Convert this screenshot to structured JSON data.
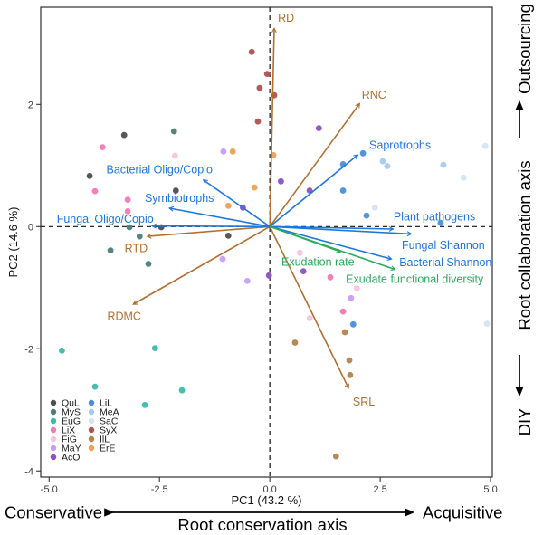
{
  "chart_data": {
    "type": "scatter",
    "subtype": "pca-biplot",
    "xlabel": "PC1 (43.2 %)",
    "ylabel": "PC2 (14.6 %)",
    "xlim": [
      -5.19,
      5.04
    ],
    "ylim": [
      -4.1,
      3.59
    ],
    "xticks": [
      -5.0,
      -2.5,
      0.0,
      2.5,
      5.0
    ],
    "xtick_labels": [
      "-5.0",
      "-2.5",
      "0.0",
      "2.5",
      "5.0"
    ],
    "yticks": [
      2,
      0,
      -2,
      -4
    ],
    "ytick_labels": [
      "2",
      "0",
      "-2",
      "-4"
    ],
    "grid": false,
    "dashed_zero_lines": true,
    "legend_position": "bottom-left-inside",
    "series": [
      {
        "name": "QuL",
        "color": "#4e4e4e",
        "points": [
          [
            -3.3,
            1.5
          ],
          [
            -4.08,
            0.83
          ],
          [
            -2.13,
            0.59
          ],
          [
            -2.46,
            -0.01
          ],
          [
            -0.94,
            -0.15
          ]
        ]
      },
      {
        "name": "MyS",
        "color": "#4e7d79",
        "points": [
          [
            -2.17,
            1.56
          ],
          [
            -3.18,
            -0.01
          ],
          [
            -2.95,
            -0.16
          ],
          [
            -3.61,
            -0.39
          ],
          [
            -2.75,
            -0.61
          ]
        ]
      },
      {
        "name": "EuG",
        "color": "#3cb9ae",
        "points": [
          [
            -4.71,
            -2.03
          ],
          [
            -2.6,
            -1.99
          ],
          [
            -3.96,
            -2.62
          ],
          [
            -1.99,
            -2.68
          ],
          [
            -2.83,
            -2.92
          ]
        ]
      },
      {
        "name": "LiX",
        "color": "#f279b5",
        "points": [
          [
            -3.79,
            1.3
          ],
          [
            -3.96,
            0.58
          ],
          [
            -3.22,
            0.44
          ],
          [
            -3.22,
            0.25
          ],
          [
            1.37,
            -0.83
          ],
          [
            1.66,
            -1.39
          ]
        ]
      },
      {
        "name": "FiG",
        "color": "#f9c3dc",
        "points": [
          [
            -2.15,
            1.16
          ],
          [
            0.68,
            -0.43
          ],
          [
            1.97,
            -1.01
          ],
          [
            0.9,
            -1.5
          ]
        ]
      },
      {
        "name": "MaY",
        "color": "#c99cf5",
        "points": [
          [
            -1.05,
            1.23
          ],
          [
            -1.07,
            -0.53
          ],
          [
            -0.51,
            -0.89
          ],
          [
            1.84,
            -1.17
          ]
        ]
      },
      {
        "name": "AcO",
        "color": "#8a50c4",
        "points": [
          [
            1.11,
            1.61
          ],
          [
            0.25,
            0.74
          ],
          [
            0.9,
            0.59
          ],
          [
            -0.61,
            0.31
          ],
          [
            0.76,
            -0.73
          ],
          [
            -0.02,
            -0.8
          ]
        ]
      },
      {
        "name": "LiL",
        "color": "#4a8fdb",
        "points": [
          [
            2.11,
            1.2
          ],
          [
            1.66,
            1.02
          ],
          [
            1.66,
            0.59
          ],
          [
            2.19,
            0.18
          ],
          [
            3.87,
            0.06
          ],
          [
            1.89,
            -1.6
          ]
        ]
      },
      {
        "name": "MeA",
        "color": "#a5caf0",
        "points": [
          [
            2.56,
            1.07
          ],
          [
            2.66,
            0.99
          ],
          [
            3.93,
            1.01
          ]
        ]
      },
      {
        "name": "SaC",
        "color": "#d5e3f7",
        "points": [
          [
            4.88,
            1.32
          ],
          [
            4.39,
            0.8
          ],
          [
            2.38,
            0.31
          ],
          [
            4.92,
            -1.59
          ]
        ]
      },
      {
        "name": "SyX",
        "color": "#b15050",
        "points": [
          [
            -0.41,
            2.86
          ],
          [
            -0.06,
            2.5
          ],
          [
            -0.23,
            2.27
          ],
          [
            0.1,
            2.15
          ],
          [
            -0.27,
            1.72
          ]
        ]
      },
      {
        "name": "IlL",
        "color": "#b2834d",
        "points": [
          [
            1.7,
            -1.73
          ],
          [
            0.57,
            -1.9
          ],
          [
            1.8,
            -2.19
          ],
          [
            1.82,
            -2.43
          ],
          [
            1.5,
            -3.76
          ]
        ]
      },
      {
        "name": "ErE",
        "color": "#efa053",
        "points": [
          [
            -0.84,
            1.23
          ],
          [
            0.08,
            1.17
          ],
          [
            -0.35,
            0.64
          ],
          [
            -0.94,
            0.34
          ]
        ]
      }
    ],
    "legend": {
      "columns": [
        [
          "QuL",
          "MyS",
          "EuG",
          "LiX",
          "FiG",
          "MaY",
          "AcO"
        ],
        [
          "LiL",
          "MeA",
          "SaC",
          "SyX",
          "IlL",
          "ErE"
        ]
      ]
    },
    "arrow_colors": {
      "trait": "#b06f2f",
      "microbe": "#1d77dd",
      "exudate": "#2aab5e"
    },
    "arrows": [
      {
        "label": "RD",
        "group": "trait",
        "x": 0.1,
        "y": 3.24,
        "label_at": [
          0.37,
          3.41
        ]
      },
      {
        "label": "RNC",
        "group": "trait",
        "x": 2.03,
        "y": 2.01,
        "label_at": [
          2.36,
          2.15
        ]
      },
      {
        "label": "RTD",
        "group": "trait",
        "x": -2.77,
        "y": -0.16,
        "label_at": [
          -3.03,
          -0.36
        ]
      },
      {
        "label": "RDMC",
        "group": "trait",
        "x": -3.09,
        "y": -1.27,
        "label_at": [
          -3.3,
          -1.47
        ]
      },
      {
        "label": "SRL",
        "group": "trait",
        "x": 1.78,
        "y": -2.64,
        "label_at": [
          2.13,
          -2.87
        ]
      },
      {
        "label": "Saprotrophs",
        "group": "microbe",
        "x": 1.99,
        "y": 1.17,
        "label_at": [
          2.95,
          1.33
        ]
      },
      {
        "label": "Bacterial Oligo/Copio",
        "group": "microbe",
        "x": -1.5,
        "y": 0.76,
        "label_at": [
          -2.5,
          0.93
        ]
      },
      {
        "label": "Symbiotrophs",
        "group": "microbe",
        "x": -2.27,
        "y": 0.3,
        "label_at": [
          -2.05,
          0.46
        ]
      },
      {
        "label": "Fungal Oligo/Copio",
        "group": "microbe",
        "x": -2.66,
        "y": 0.01,
        "label_at": [
          -3.73,
          0.12
        ]
      },
      {
        "label": "Plant pathogens",
        "group": "microbe",
        "x": 2.79,
        "y": -0.04,
        "label_at": [
          3.73,
          0.16
        ]
      },
      {
        "label": "Fungal Shannon",
        "group": "microbe",
        "x": 3.2,
        "y": -0.12,
        "label_at": [
          3.93,
          -0.31
        ]
      },
      {
        "label": "Bacterial Shannon",
        "group": "microbe",
        "x": 2.75,
        "y": -0.53,
        "label_at": [
          3.98,
          -0.59
        ]
      },
      {
        "label": "Exudation rate",
        "group": "exudate",
        "x": 1.6,
        "y": -0.41,
        "label_at": [
          1.09,
          -0.58
        ]
      },
      {
        "label": "Exudate functional diversity",
        "group": "exudate",
        "x": 2.83,
        "y": -0.7,
        "label_at": [
          3.28,
          -0.86
        ]
      }
    ],
    "annotations": {
      "bottom": {
        "left": "Conservative",
        "right": "Acquisitive",
        "axis": "Root conservation axis"
      },
      "right": {
        "top": "Outsourcing",
        "bottom": "DIY",
        "axis": "Root collaboration axis"
      }
    }
  }
}
